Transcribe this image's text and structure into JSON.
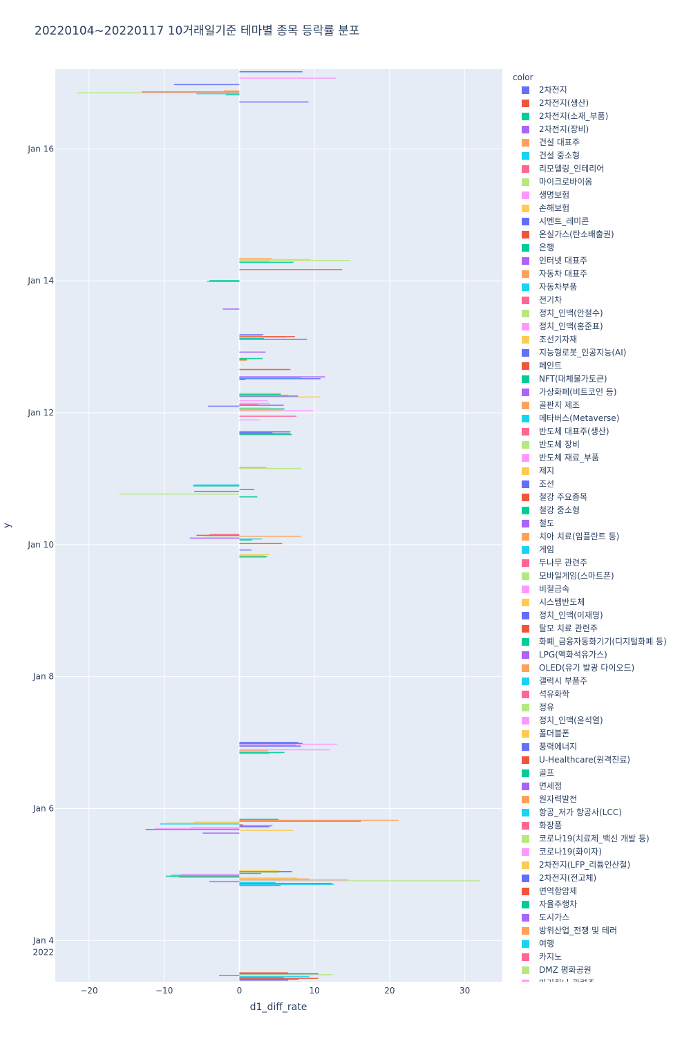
{
  "chart_data": {
    "type": "bar",
    "orientation": "horizontal",
    "title": "20220104~20220117 10거래일기준 테마별 종목 등락률 분포",
    "xlabel": "d1_diff_rate",
    "ylabel": "y",
    "xlim": [
      -24.5,
      35
    ],
    "ylim": [
      "2022-01-03 09:00",
      "2022-01-17 05:00"
    ],
    "x_ticks": [
      -20,
      -10,
      0,
      10,
      20,
      30
    ],
    "x_tick_labels": [
      "−20",
      "−10",
      "0",
      "10",
      "20",
      "30"
    ],
    "y_ticks": [
      "2022-01-04",
      "2022-01-06",
      "2022-01-08",
      "2022-01-10",
      "2022-01-12",
      "2022-01-14",
      "2022-01-16"
    ],
    "y_tick_labels": [
      "Jan 4\n2022",
      "Jan 6",
      "Jan 8",
      "Jan 10",
      "Jan 12",
      "Jan 14",
      "Jan 16"
    ],
    "grid": true,
    "legend_title": "color",
    "legend_position": "right",
    "series": [
      {
        "name": "2차전지",
        "color": "#636efa"
      },
      {
        "name": "2차전지(생산)",
        "color": "#EF553B"
      },
      {
        "name": "2차전지(소재_부품)",
        "color": "#00cc96"
      },
      {
        "name": "2차전지(장비)",
        "color": "#ab63fa"
      },
      {
        "name": "건설 대표주",
        "color": "#FFA15A"
      },
      {
        "name": "건설 중소형",
        "color": "#19d3f3"
      },
      {
        "name": "리모델링_인테리어",
        "color": "#FF6692"
      },
      {
        "name": "마이크로바이옴",
        "color": "#B6E880"
      },
      {
        "name": "생명보험",
        "color": "#FF97FF"
      },
      {
        "name": "손해보험",
        "color": "#FECB52"
      },
      {
        "name": "시멘트_레미콘",
        "color": "#636efa"
      },
      {
        "name": "온실가스(탄소배출권)",
        "color": "#EF553B"
      },
      {
        "name": "은행",
        "color": "#00cc96"
      },
      {
        "name": "인터넷 대표주",
        "color": "#ab63fa"
      },
      {
        "name": "자동차 대표주",
        "color": "#FFA15A"
      },
      {
        "name": "자동차부품",
        "color": "#19d3f3"
      },
      {
        "name": "전기차",
        "color": "#FF6692"
      },
      {
        "name": "정치_인맥(안철수)",
        "color": "#B6E880"
      },
      {
        "name": "정치_인맥(홍준표)",
        "color": "#FF97FF"
      },
      {
        "name": "조선기자재",
        "color": "#FECB52"
      },
      {
        "name": "지능형로봇_인공지능(AI)",
        "color": "#636efa"
      },
      {
        "name": "페인트",
        "color": "#EF553B"
      },
      {
        "name": "NFT(대체불가토큰)",
        "color": "#00cc96"
      },
      {
        "name": "가상화폐(비트코인 등)",
        "color": "#ab63fa"
      },
      {
        "name": "골판지 제조",
        "color": "#FFA15A"
      },
      {
        "name": "메타버스(Metaverse)",
        "color": "#19d3f3"
      },
      {
        "name": "반도체 대표주(생산)",
        "color": "#FF6692"
      },
      {
        "name": "반도체 장비",
        "color": "#B6E880"
      },
      {
        "name": "반도체 재료_부품",
        "color": "#FF97FF"
      },
      {
        "name": "제지",
        "color": "#FECB52"
      },
      {
        "name": "조선",
        "color": "#636efa"
      },
      {
        "name": "철강 주요종목",
        "color": "#EF553B"
      },
      {
        "name": "철강 중소형",
        "color": "#00cc96"
      },
      {
        "name": "철도",
        "color": "#ab63fa"
      },
      {
        "name": "치아 치료(임플란트 등)",
        "color": "#FFA15A"
      },
      {
        "name": "게임",
        "color": "#19d3f3"
      },
      {
        "name": "두나무 관련주",
        "color": "#FF6692"
      },
      {
        "name": "모바일게임(스마트폰)",
        "color": "#B6E880"
      },
      {
        "name": "비철금속",
        "color": "#FF97FF"
      },
      {
        "name": "시스템반도체",
        "color": "#FECB52"
      },
      {
        "name": "정치_인맥(이재명)",
        "color": "#636efa"
      },
      {
        "name": "탈모 치료 관련주",
        "color": "#EF553B"
      },
      {
        "name": "화폐_금융자동화기기(디지털화폐 등)",
        "color": "#00cc96"
      },
      {
        "name": "LPG(액화석유가스)",
        "color": "#ab63fa"
      },
      {
        "name": "OLED(유기 발광 다이오드)",
        "color": "#FFA15A"
      },
      {
        "name": "갤럭시 부품주",
        "color": "#19d3f3"
      },
      {
        "name": "석유화학",
        "color": "#FF6692"
      },
      {
        "name": "정유",
        "color": "#B6E880"
      },
      {
        "name": "정치_인맥(윤석열)",
        "color": "#FF97FF"
      },
      {
        "name": "폴더블폰",
        "color": "#FECB52"
      },
      {
        "name": "풍력에너지",
        "color": "#636efa"
      },
      {
        "name": "U-Healthcare(원격진료)",
        "color": "#EF553B"
      },
      {
        "name": "골프",
        "color": "#00cc96"
      },
      {
        "name": "면세점",
        "color": "#ab63fa"
      },
      {
        "name": "원자력발전",
        "color": "#FFA15A"
      },
      {
        "name": "항공_저가 항공사(LCC)",
        "color": "#19d3f3"
      },
      {
        "name": "화장품",
        "color": "#FF6692"
      },
      {
        "name": "코로나19(치료제_백신 개발 등)",
        "color": "#B6E880"
      },
      {
        "name": "코로나19(화이자)",
        "color": "#FF97FF"
      },
      {
        "name": "2차전지(LFP_리튬인산철)",
        "color": "#FECB52"
      },
      {
        "name": "2차전지(전고체)",
        "color": "#636efa"
      },
      {
        "name": "면역항암제",
        "color": "#EF553B"
      },
      {
        "name": "자율주행차",
        "color": "#00cc96"
      },
      {
        "name": "도시가스",
        "color": "#ab63fa"
      },
      {
        "name": "방위산업_전쟁 및 테러",
        "color": "#FFA15A"
      },
      {
        "name": "여행",
        "color": "#19d3f3"
      },
      {
        "name": "카지노",
        "color": "#FF6692"
      },
      {
        "name": "DMZ 평화공원",
        "color": "#B6E880"
      },
      {
        "name": "마리화나 관련주",
        "color": "#FF97FF"
      }
    ],
    "bars": [
      {
        "t": "2022-01-03 09:30",
        "v": 6.5,
        "c": 0
      },
      {
        "t": "2022-01-03 09:50",
        "v": 7.9,
        "c": 10
      },
      {
        "t": "2022-01-03 10:10",
        "v": 10.5,
        "c": 1
      },
      {
        "t": "2022-01-03 10:30",
        "v": 5.9,
        "c": 2
      },
      {
        "t": "2022-01-03 10:50",
        "v": 9.3,
        "c": 5
      },
      {
        "t": "2022-01-03 11:10",
        "v": -2.7,
        "c": 3
      },
      {
        "t": "2022-01-03 11:30",
        "v": 12.4,
        "c": 7
      },
      {
        "t": "2022-01-03 11:50",
        "v": 10.5,
        "c": 20
      },
      {
        "t": "2022-01-03 12:10",
        "v": 6.5,
        "c": 11
      },
      {
        "t": "2022-01-04 20:00",
        "v": 5.5,
        "c": 0
      },
      {
        "t": "2022-01-04 20:20",
        "v": 12.6,
        "c": 25
      },
      {
        "t": "2022-01-04 20:40",
        "v": 12.3,
        "c": 0
      },
      {
        "t": "2022-01-04 21:00",
        "v": 4.8,
        "c": 15
      },
      {
        "t": "2022-01-04 21:20",
        "v": -4.0,
        "c": 3
      },
      {
        "t": "2022-01-04 21:40",
        "v": 32.0,
        "c": 7
      },
      {
        "t": "2022-01-04 22:00",
        "v": 14.5,
        "c": 8
      },
      {
        "t": "2022-01-04 22:20",
        "v": 9.3,
        "c": 4
      },
      {
        "t": "2022-01-04 22:40",
        "v": 7.7,
        "c": 9
      },
      {
        "t": "2022-01-04 23:00",
        "v": -8.1,
        "c": 6
      },
      {
        "t": "2022-01-04 23:20",
        "v": -9.8,
        "c": 2
      },
      {
        "t": "2022-01-04 23:40",
        "v": -9.1,
        "c": 5
      },
      {
        "t": "2022-01-05 00:00",
        "v": -7.8,
        "c": 8
      },
      {
        "t": "2022-01-05 00:20",
        "v": 2.9,
        "c": 3
      },
      {
        "t": "2022-01-05 00:40",
        "v": 5.3,
        "c": 17
      },
      {
        "t": "2022-01-05 01:00",
        "v": 7.0,
        "c": 30
      },
      {
        "t": "2022-01-05 01:20",
        "v": 5.2,
        "c": 19
      },
      {
        "t": "2022-01-05 15:00",
        "v": -4.9,
        "c": 3
      },
      {
        "t": "2022-01-05 16:00",
        "v": 7.2,
        "c": 9
      },
      {
        "t": "2022-01-05 16:20",
        "v": -12.5,
        "c": 0
      },
      {
        "t": "2022-01-05 16:40",
        "v": -11.3,
        "c": 8
      },
      {
        "t": "2022-01-05 17:00",
        "v": -6.5,
        "c": 18
      },
      {
        "t": "2022-01-05 17:20",
        "v": 4.0,
        "c": 0
      },
      {
        "t": "2022-01-05 17:40",
        "v": 4.4,
        "c": 23
      },
      {
        "t": "2022-01-05 18:00",
        "v": 0.5,
        "c": 1
      },
      {
        "t": "2022-01-05 18:20",
        "v": -10.6,
        "c": 5
      },
      {
        "t": "2022-01-05 18:40",
        "v": -9.8,
        "c": 7
      },
      {
        "t": "2022-01-05 19:00",
        "v": -6.0,
        "c": 9
      },
      {
        "t": "2022-01-05 19:20",
        "v": 16.2,
        "c": 1
      },
      {
        "t": "2022-01-05 19:40",
        "v": 21.2,
        "c": 4
      },
      {
        "t": "2022-01-05 20:00",
        "v": 5.2,
        "c": 12
      },
      {
        "t": "2022-01-06 20:00",
        "v": 4.0,
        "c": 15
      },
      {
        "t": "2022-01-06 20:20",
        "v": 6.0,
        "c": 2
      },
      {
        "t": "2022-01-06 20:40",
        "v": 3.6,
        "c": 9
      },
      {
        "t": "2022-01-06 21:00",
        "v": 3.8,
        "c": 4
      },
      {
        "t": "2022-01-06 21:20",
        "v": 12.0,
        "c": 8
      },
      {
        "t": "2022-01-06 22:40",
        "v": 8.2,
        "c": 0
      },
      {
        "t": "2022-01-06 23:00",
        "v": 7.5,
        "c": 5
      },
      {
        "t": "2022-01-06 23:20",
        "v": 13.0,
        "c": 18
      },
      {
        "t": "2022-01-06 23:40",
        "v": 8.4,
        "c": 20
      },
      {
        "t": "2022-01-07 00:00",
        "v": 7.8,
        "c": 10
      },
      {
        "t": "2022-01-09 19:20",
        "v": 3.5,
        "c": 4
      },
      {
        "t": "2022-01-09 19:40",
        "v": 3.7,
        "c": 12
      },
      {
        "t": "2022-01-09 20:00",
        "v": 3.3,
        "c": 29
      },
      {
        "t": "2022-01-09 20:20",
        "v": 4.0,
        "c": 19
      },
      {
        "t": "2022-01-09 22:00",
        "v": 1.6,
        "c": 0
      },
      {
        "t": "2022-01-10 00:20",
        "v": 5.7,
        "c": 1
      },
      {
        "t": "2022-01-10 01:40",
        "v": 1.7,
        "c": 12
      },
      {
        "t": "2022-01-10 02:00",
        "v": 3.0,
        "c": 5
      },
      {
        "t": "2022-01-10 02:20",
        "v": -6.6,
        "c": 3
      },
      {
        "t": "2022-01-10 02:40",
        "v": -4.5,
        "c": 7
      },
      {
        "t": "2022-01-10 03:00",
        "v": 8.2,
        "c": 4
      },
      {
        "t": "2022-01-10 03:20",
        "v": -5.7,
        "c": 11
      },
      {
        "t": "2022-01-10 03:40",
        "v": -4.0,
        "c": 6
      },
      {
        "t": "2022-01-10 17:20",
        "v": 2.4,
        "c": 2
      },
      {
        "t": "2022-01-10 18:20",
        "v": -16.0,
        "c": 7
      },
      {
        "t": "2022-01-10 19:20",
        "v": -6.0,
        "c": 0
      },
      {
        "t": "2022-01-10 20:00",
        "v": 2.0,
        "c": 1
      },
      {
        "t": "2022-01-10 21:20",
        "v": -6.2,
        "c": 12
      },
      {
        "t": "2022-01-10 21:40",
        "v": -6.0,
        "c": 5
      },
      {
        "t": "2022-01-11 03:40",
        "v": 8.3,
        "c": 7
      },
      {
        "t": "2022-01-11 04:00",
        "v": 3.6,
        "c": 4
      },
      {
        "t": "2022-01-11 16:00",
        "v": 7.0,
        "c": 2
      },
      {
        "t": "2022-01-11 16:20",
        "v": 6.8,
        "c": 11
      },
      {
        "t": "2022-01-11 16:40",
        "v": 4.4,
        "c": 0
      },
      {
        "t": "2022-01-11 17:00",
        "v": 6.8,
        "c": 10
      },
      {
        "t": "2022-01-11 21:20",
        "v": 2.7,
        "c": 8
      },
      {
        "t": "2022-01-11 22:40",
        "v": 7.6,
        "c": 6
      },
      {
        "t": "2022-01-12 00:40",
        "v": 9.8,
        "c": 18
      },
      {
        "t": "2022-01-12 01:00",
        "v": 5.8,
        "c": 9
      },
      {
        "t": "2022-01-12 01:20",
        "v": 6.0,
        "c": 12
      },
      {
        "t": "2022-01-12 01:40",
        "v": 4.0,
        "c": 27
      },
      {
        "t": "2022-01-12 02:20",
        "v": -4.2,
        "c": 0
      },
      {
        "t": "2022-01-12 02:40",
        "v": 5.9,
        "c": 3
      },
      {
        "t": "2022-01-12 03:00",
        "v": 2.5,
        "c": 16
      },
      {
        "t": "2022-01-12 03:20",
        "v": 4.0,
        "c": 28
      },
      {
        "t": "2022-01-12 04:20",
        "v": 3.8,
        "c": 8
      },
      {
        "t": "2022-01-12 05:40",
        "v": 10.7,
        "c": 9
      },
      {
        "t": "2022-01-12 06:00",
        "v": 7.8,
        "c": 0
      },
      {
        "t": "2022-01-12 06:20",
        "v": 6.5,
        "c": 14
      },
      {
        "t": "2022-01-12 06:40",
        "v": 5.5,
        "c": 2
      },
      {
        "t": "2022-01-12 07:00",
        "v": 5.6,
        "c": 7
      },
      {
        "t": "2022-01-12 12:00",
        "v": 0.8,
        "c": 1
      },
      {
        "t": "2022-01-12 12:20",
        "v": 10.8,
        "c": 0
      },
      {
        "t": "2022-01-12 12:40",
        "v": 8.2,
        "c": 5
      },
      {
        "t": "2022-01-12 13:00",
        "v": 11.4,
        "c": 3
      },
      {
        "t": "2022-01-12 15:40",
        "v": 6.8,
        "c": 1
      },
      {
        "t": "2022-01-12 19:00",
        "v": 1.0,
        "c": 4
      },
      {
        "t": "2022-01-12 19:20",
        "v": 1.0,
        "c": 11
      },
      {
        "t": "2022-01-12 19:40",
        "v": 3.1,
        "c": 12
      },
      {
        "t": "2022-01-12 22:00",
        "v": 3.5,
        "c": 3
      },
      {
        "t": "2022-01-13 02:40",
        "v": 9.0,
        "c": 0
      },
      {
        "t": "2022-01-13 03:00",
        "v": 3.3,
        "c": 2
      },
      {
        "t": "2022-01-13 03:20",
        "v": 6.2,
        "c": 9
      },
      {
        "t": "2022-01-13 03:40",
        "v": 7.4,
        "c": 11
      },
      {
        "t": "2022-01-13 04:00",
        "v": 3.0,
        "c": 4
      },
      {
        "t": "2022-01-13 04:20",
        "v": 3.2,
        "c": 10
      },
      {
        "t": "2022-01-13 13:40",
        "v": -2.2,
        "c": 3
      },
      {
        "t": "2022-01-13 23:40",
        "v": -4.3,
        "c": 5
      },
      {
        "t": "2022-01-14 00:00",
        "v": -4.0,
        "c": 2
      },
      {
        "t": "2022-01-14 04:00",
        "v": 13.7,
        "c": 1
      },
      {
        "t": "2022-01-14 06:40",
        "v": 7.2,
        "c": 2
      },
      {
        "t": "2022-01-14 07:00",
        "v": 4.0,
        "c": 4
      },
      {
        "t": "2022-01-14 07:20",
        "v": 14.7,
        "c": 7
      },
      {
        "t": "2022-01-14 07:40",
        "v": 9.5,
        "c": 9
      },
      {
        "t": "2022-01-14 08:00",
        "v": 4.3,
        "c": 14
      },
      {
        "t": "2022-01-16 17:00",
        "v": 9.2,
        "c": 0
      },
      {
        "t": "2022-01-16 19:40",
        "v": -1.8,
        "c": 2
      },
      {
        "t": "2022-01-16 20:00",
        "v": -5.7,
        "c": 5
      },
      {
        "t": "2022-01-16 20:20",
        "v": -21.6,
        "c": 7
      },
      {
        "t": "2022-01-16 20:40",
        "v": -13.0,
        "c": 6
      },
      {
        "t": "2022-01-16 21:00",
        "v": -2.1,
        "c": 4
      },
      {
        "t": "2022-01-16 23:20",
        "v": -8.7,
        "c": 0
      },
      {
        "t": "2022-01-17 01:40",
        "v": 12.9,
        "c": 8
      },
      {
        "t": "2022-01-17 04:00",
        "v": 8.4,
        "c": 0
      }
    ]
  }
}
